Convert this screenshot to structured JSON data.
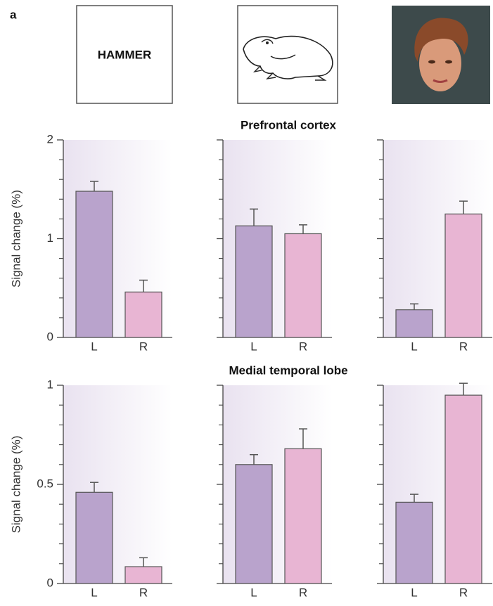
{
  "panel_label": "a",
  "stimuli": [
    {
      "label": "HAMMER"
    }
  ],
  "chart_data": [
    {
      "type": "bar",
      "title": "Prefrontal cortex",
      "y_label": "Signal change (%)",
      "categories": [
        "L",
        "R"
      ],
      "values": [
        1.48,
        0.46
      ],
      "errors": [
        0.1,
        0.12
      ],
      "colors": [
        "#b9a3cc",
        "#e8b5d3"
      ],
      "ylim": [
        0,
        2
      ],
      "yticks": [
        0,
        1,
        2
      ],
      "yticks_minor": [
        0.2,
        0.4,
        0.6,
        0.8,
        1.2,
        1.4,
        1.6,
        1.8
      ]
    },
    {
      "type": "bar",
      "categories": [
        "L",
        "R"
      ],
      "values": [
        1.13,
        1.05
      ],
      "errors": [
        0.17,
        0.09
      ],
      "colors": [
        "#b9a3cc",
        "#e8b5d3"
      ],
      "ylim": [
        0,
        2
      ],
      "yticks": [
        0,
        1,
        2
      ],
      "yticks_minor": [
        0.2,
        0.4,
        0.6,
        0.8,
        1.2,
        1.4,
        1.6,
        1.8
      ]
    },
    {
      "type": "bar",
      "categories": [
        "L",
        "R"
      ],
      "values": [
        0.28,
        1.25
      ],
      "errors": [
        0.06,
        0.13
      ],
      "colors": [
        "#b9a3cc",
        "#e8b5d3"
      ],
      "ylim": [
        0,
        2
      ],
      "yticks": [
        0,
        1,
        2
      ],
      "yticks_minor": [
        0.2,
        0.4,
        0.6,
        0.8,
        1.2,
        1.4,
        1.6,
        1.8
      ]
    },
    {
      "type": "bar",
      "title": "Medial temporal lobe",
      "y_label": "Signal change (%)",
      "categories": [
        "L",
        "R"
      ],
      "values": [
        0.46,
        0.085
      ],
      "errors": [
        0.05,
        0.045
      ],
      "colors": [
        "#b9a3cc",
        "#e8b5d3"
      ],
      "ylim": [
        0,
        1
      ],
      "yticks": [
        0,
        0.5,
        1
      ],
      "yticks_minor": [
        0.1,
        0.2,
        0.3,
        0.4,
        0.6,
        0.7,
        0.8,
        0.9
      ]
    },
    {
      "type": "bar",
      "categories": [
        "L",
        "R"
      ],
      "values": [
        0.6,
        0.68
      ],
      "errors": [
        0.05,
        0.1
      ],
      "colors": [
        "#b9a3cc",
        "#e8b5d3"
      ],
      "ylim": [
        0,
        1
      ],
      "yticks": [
        0,
        0.5,
        1
      ],
      "yticks_minor": [
        0.1,
        0.2,
        0.3,
        0.4,
        0.6,
        0.7,
        0.8,
        0.9
      ]
    },
    {
      "type": "bar",
      "categories": [
        "L",
        "R"
      ],
      "values": [
        0.41,
        0.95
      ],
      "errors": [
        0.04,
        0.06
      ],
      "colors": [
        "#b9a3cc",
        "#e8b5d3"
      ],
      "ylim": [
        0,
        1
      ],
      "yticks": [
        0,
        0.5,
        1
      ],
      "yticks_minor": [
        0.1,
        0.2,
        0.3,
        0.4,
        0.6,
        0.7,
        0.8,
        0.9
      ]
    }
  ]
}
